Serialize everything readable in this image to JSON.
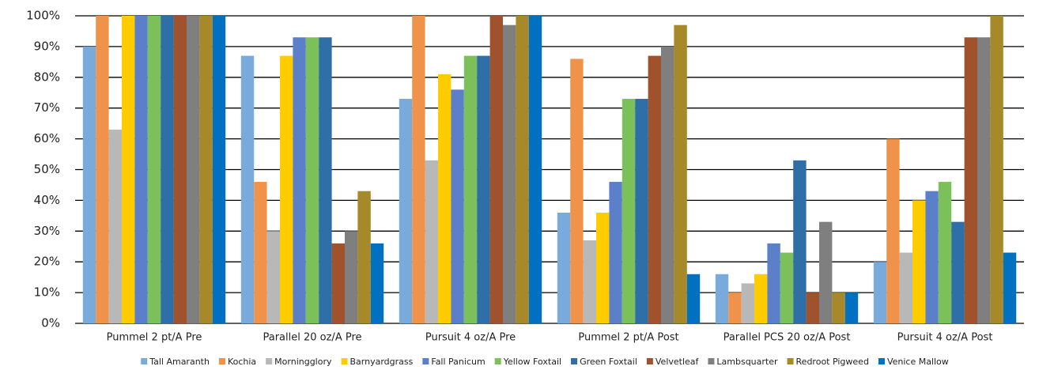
{
  "chart_data": {
    "type": "bar",
    "categories": [
      "Pummel 2 pt/A Pre",
      "Parallel 20 oz/A Pre",
      "Pursuit 4 oz/A Pre",
      "Pummel 2 pt/A Post",
      "Parallel PCS 20 oz/A Post",
      "Pursuit 4 oz/A Post"
    ],
    "series": [
      {
        "name": "Tall Amaranth",
        "color": "#78aadc",
        "values": [
          90,
          87,
          73,
          36,
          16,
          20
        ]
      },
      {
        "name": "Kochia",
        "color": "#f0924a",
        "values": [
          100,
          46,
          100,
          86,
          10,
          60
        ]
      },
      {
        "name": "Morningglory",
        "color": "#b8b8b8",
        "values": [
          63,
          30,
          53,
          27,
          13,
          23
        ]
      },
      {
        "name": "Barnyardgrass",
        "color": "#ffcc00",
        "values": [
          100,
          87,
          81,
          36,
          16,
          40
        ]
      },
      {
        "name": "Fall Panicum",
        "color": "#5b7fc8",
        "values": [
          100,
          93,
          76,
          46,
          26,
          43
        ]
      },
      {
        "name": "Yellow Foxtail",
        "color": "#7cc05a",
        "values": [
          100,
          93,
          87,
          73,
          23,
          46
        ]
      },
      {
        "name": "Green Foxtail",
        "color": "#2e6fa8",
        "values": [
          100,
          93,
          87,
          73,
          53,
          33
        ]
      },
      {
        "name": "Velvetleaf",
        "color": "#a0522d",
        "values": [
          100,
          26,
          100,
          87,
          10,
          93
        ]
      },
      {
        "name": "Lambsquarter",
        "color": "#7f7f7f",
        "values": [
          100,
          30,
          97,
          90,
          33,
          93
        ]
      },
      {
        "name": "Redroot Pigweed",
        "color": "#a8892a",
        "values": [
          100,
          43,
          100,
          97,
          10,
          100
        ]
      },
      {
        "name": "Venice Mallow",
        "color": "#0070c0",
        "values": [
          100,
          26,
          100,
          16,
          10,
          23
        ]
      }
    ],
    "ylim": [
      0,
      100
    ],
    "yticks": [
      {
        "value": 0,
        "label": "0%"
      },
      {
        "value": 10,
        "label": "10%"
      },
      {
        "value": 20,
        "label": "20%"
      },
      {
        "value": 30,
        "label": "30%"
      },
      {
        "value": 40,
        "label": "40%"
      },
      {
        "value": 50,
        "label": "50%"
      },
      {
        "value": 60,
        "label": "60%"
      },
      {
        "value": 70,
        "label": "70%"
      },
      {
        "value": 80,
        "label": "80%"
      },
      {
        "value": 90,
        "label": "90%"
      },
      {
        "value": 100,
        "label": "100%"
      }
    ],
    "grid": true,
    "legend": "bottom"
  }
}
